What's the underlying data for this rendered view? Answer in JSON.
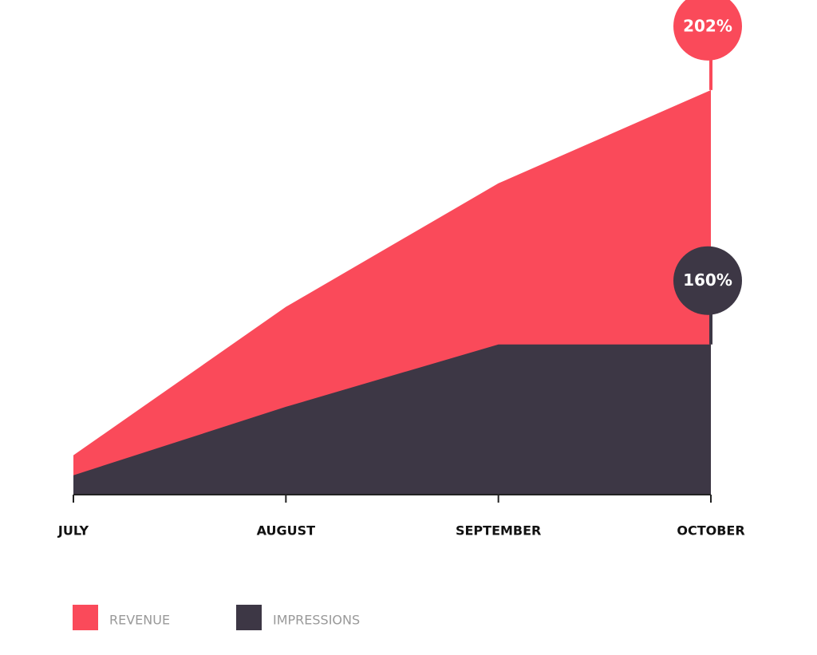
{
  "chart_data": {
    "type": "area",
    "categories": [
      "JULY",
      "AUGUST",
      "SEPTEMBER",
      "OCTOBER"
    ],
    "series": [
      {
        "name": "REVENUE",
        "color": "#fa4a5a",
        "values": [
          141.7,
          166.2,
          186.6,
          202
        ],
        "value_labels": [
          null,
          null,
          null,
          "202%"
        ]
      },
      {
        "name": "IMPRESSIONS",
        "color": "#3d3745",
        "values": [
          138.4,
          149.7,
          160,
          160
        ],
        "value_labels": [
          null,
          null,
          null,
          "160%"
        ]
      }
    ],
    "ylim": [
      135.2,
      211.6
    ],
    "grid": false,
    "legend": "bottom-left"
  }
}
